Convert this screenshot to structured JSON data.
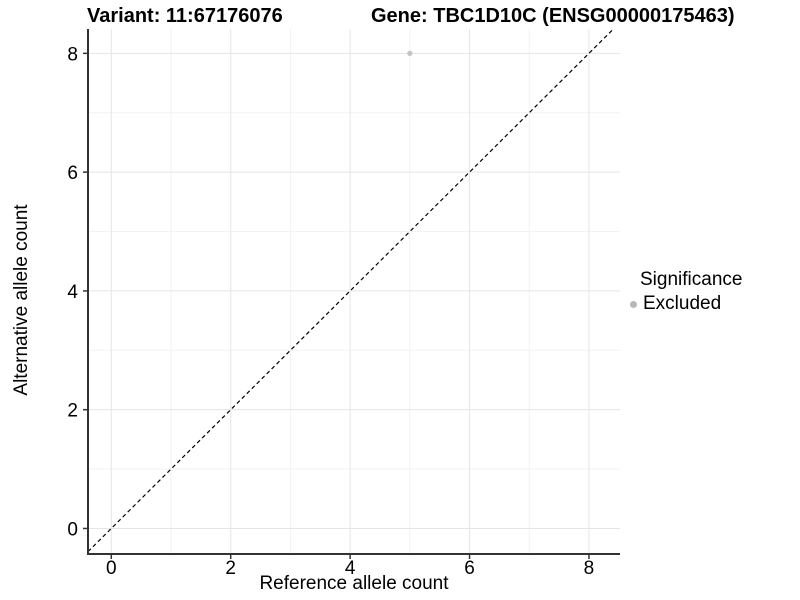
{
  "header": {
    "variant_title": "Variant: 11:67176076",
    "gene_title": "Gene: TBC1D10C (ENSG00000175463)"
  },
  "chart_data": {
    "type": "scatter",
    "xlabel": "Reference allele count",
    "ylabel": "Alternative allele count",
    "x_ticks": [
      0,
      2,
      4,
      6,
      8
    ],
    "y_ticks": [
      0,
      2,
      4,
      6,
      8
    ],
    "x_minor_ticks": [
      1,
      3,
      5,
      7
    ],
    "y_minor_ticks": [
      1,
      3,
      5,
      7
    ],
    "xlim": [
      -0.39,
      8.52
    ],
    "ylim": [
      -0.43,
      8.41
    ],
    "grid": true,
    "legend_position": "right",
    "points": [
      {
        "x": 5,
        "y": 8,
        "series": "Excluded"
      }
    ],
    "reference_line": {
      "type": "identity",
      "slope": 1,
      "intercept": 0,
      "style": "dashed"
    },
    "legend": {
      "title": "Significance",
      "items": [
        {
          "label": "Excluded",
          "color": "#bdbdbd"
        }
      ]
    },
    "colors": {
      "point": "#c3c3c3",
      "legend_dot": "#b8b8b8",
      "grid_major": "#e5e5e5",
      "grid_minor": "#f2f2f2",
      "axis": "#333333",
      "text": "#000000",
      "reference_line": "#000000",
      "background": "#ffffff"
    }
  }
}
